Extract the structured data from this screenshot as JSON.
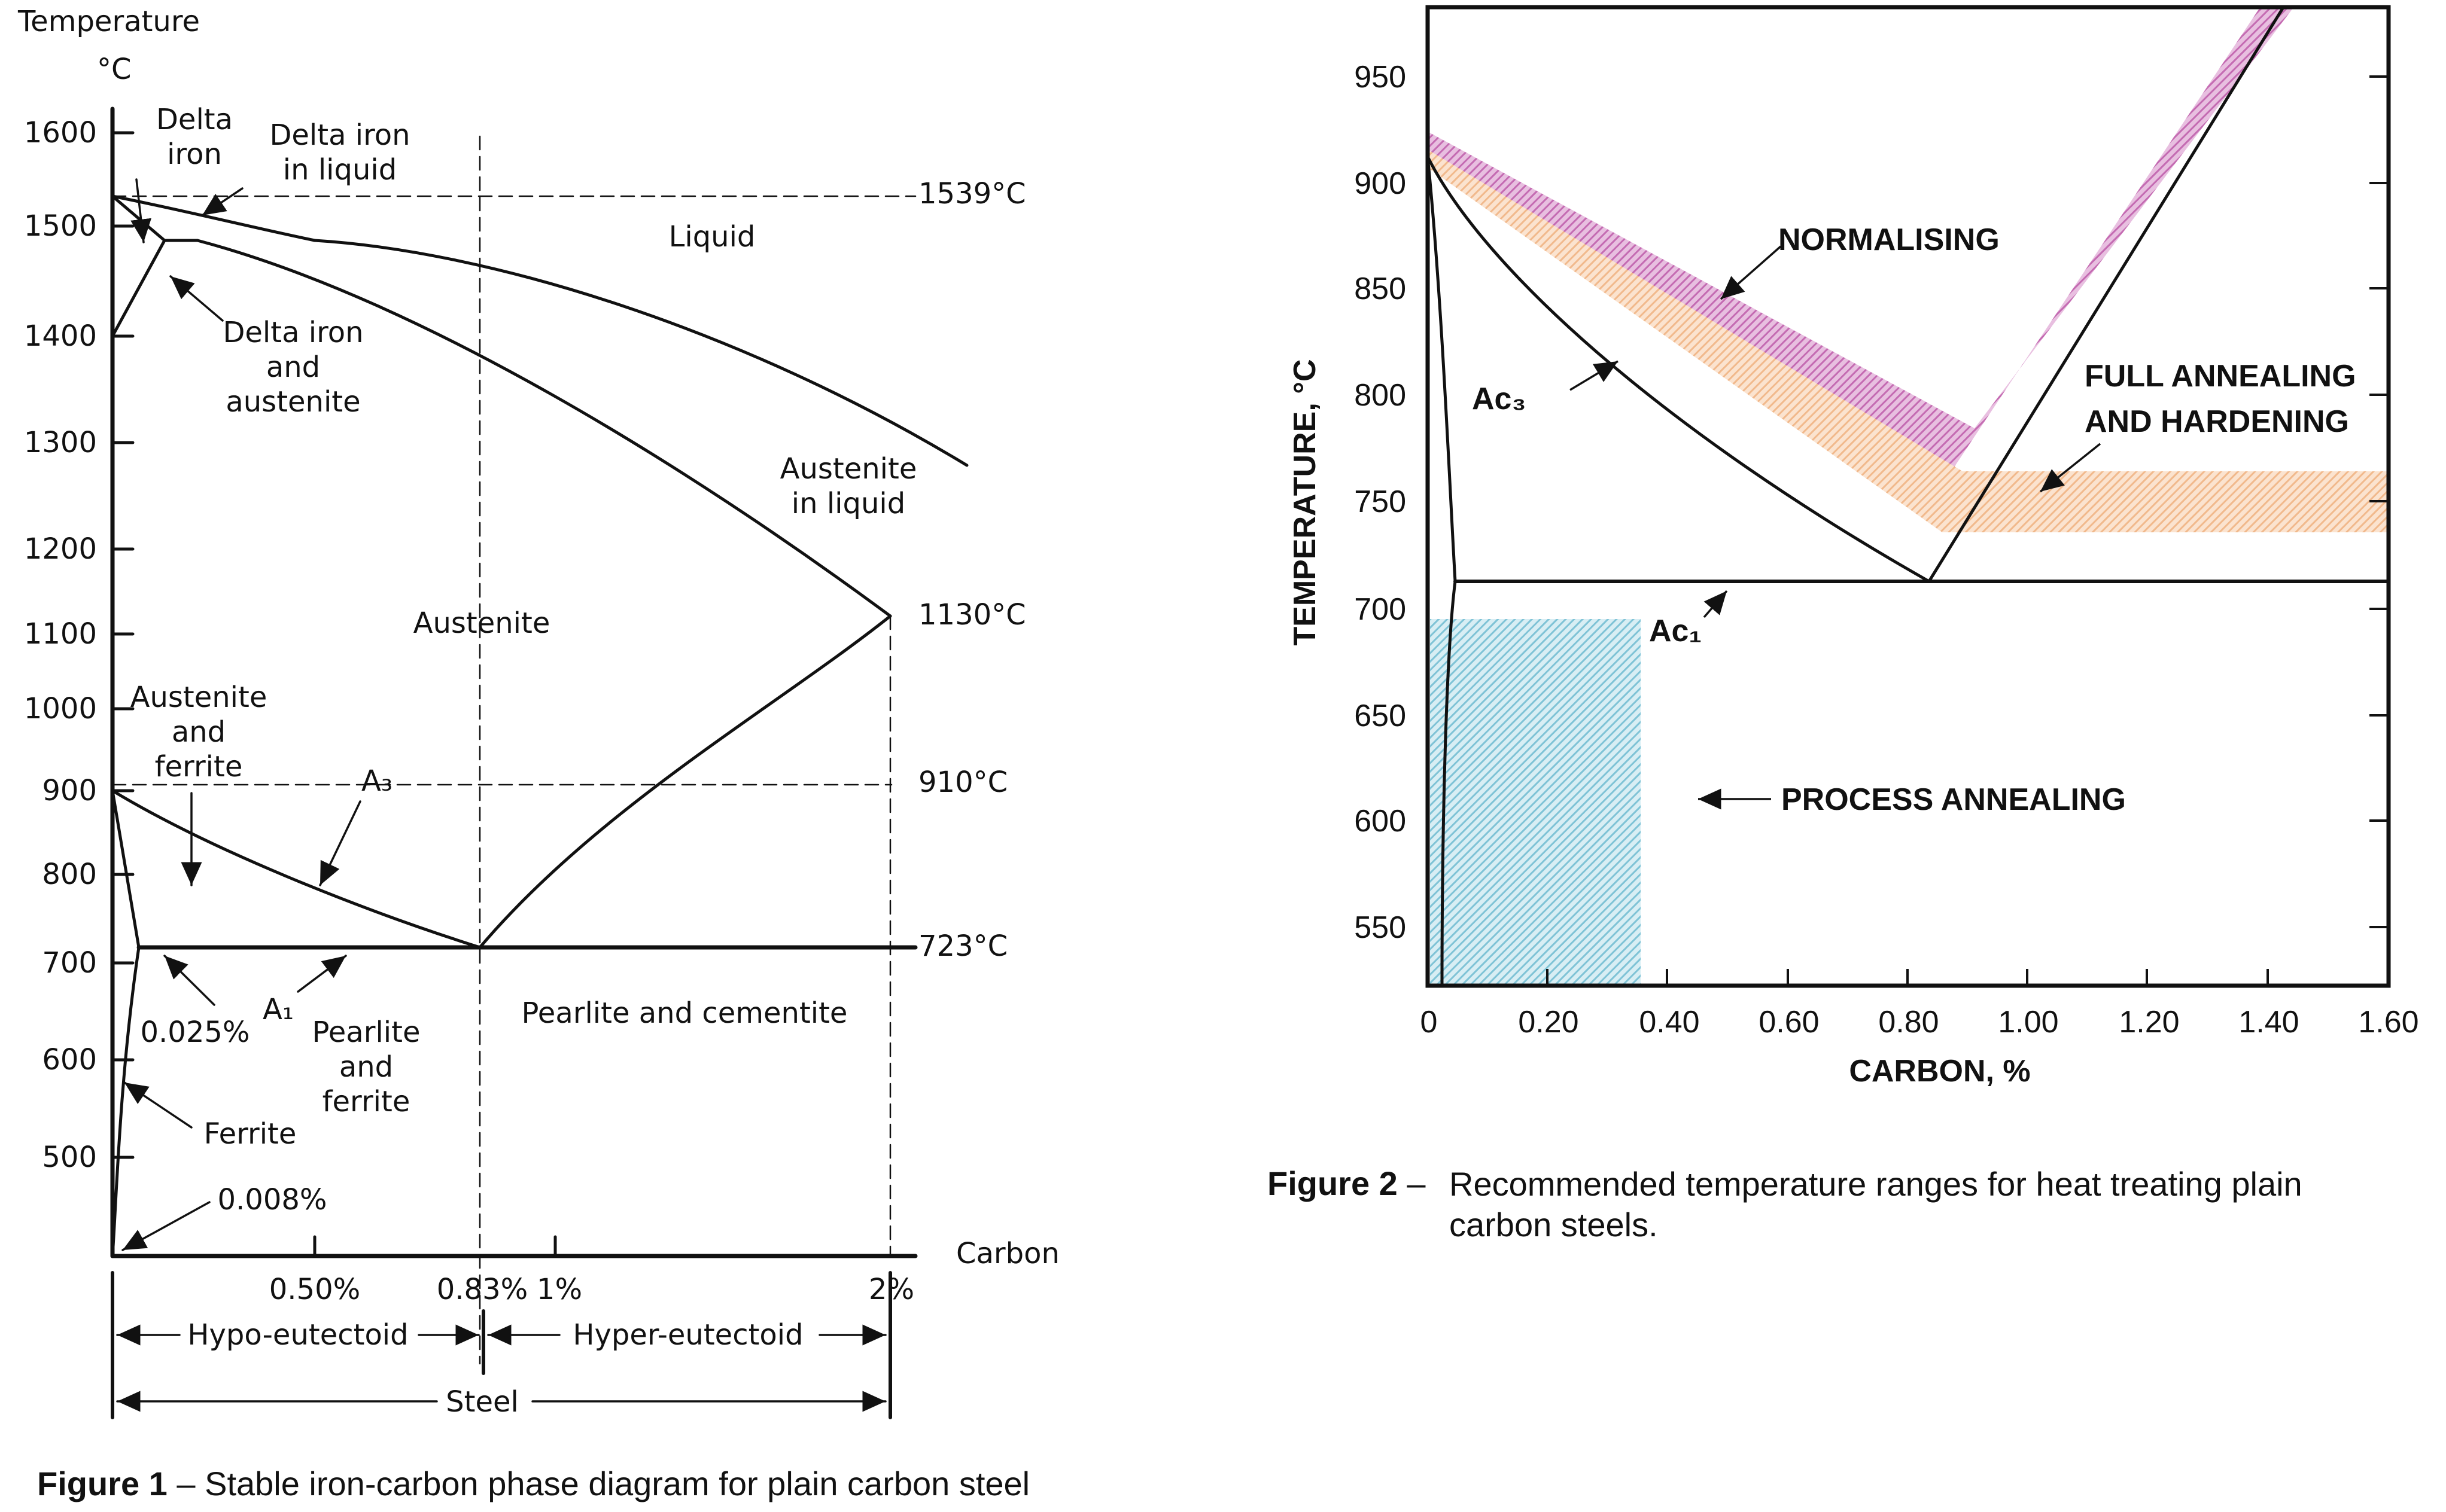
{
  "figure1": {
    "caption_label": "Figure 1",
    "caption_text": " – Stable iron-carbon phase diagram for plain carbon steel",
    "y_axis_title": "Temperature",
    "y_axis_unit": "°C",
    "x_axis_title": "Carbon",
    "y_ticks": [
      "1600",
      "1500",
      "1400",
      "1300",
      "1200",
      "1100",
      "1000",
      "900",
      "800",
      "700",
      "600",
      "500"
    ],
    "x_ticks": [
      "0.50%",
      "0.83%",
      "1%",
      "2%"
    ],
    "temp_labels": [
      "1539°C",
      "1130°C",
      "910°C",
      "723°C"
    ],
    "regions": {
      "delta_iron_1": "Delta",
      "delta_iron_2": "iron",
      "delta_in_liquid_1": "Delta iron",
      "delta_in_liquid_2": "in liquid",
      "liquid": "Liquid",
      "delta_austenite_1": "Delta iron",
      "delta_austenite_2": "and",
      "delta_austenite_3": "austenite",
      "austenite_liquid_1": "Austenite",
      "austenite_liquid_2": "in liquid",
      "austenite": "Austenite",
      "austenite_ferrite_1": "Austenite",
      "austenite_ferrite_2": "and",
      "austenite_ferrite_3": "ferrite",
      "a3": "A₃",
      "a1": "A₁",
      "pct_0025": "0.025%",
      "pearlite_ferrite_1": "Pearlite",
      "pearlite_ferrite_2": "and",
      "pearlite_ferrite_3": "ferrite",
      "pearlite_cementite": "Pearlite and cementite",
      "ferrite": "Ferrite",
      "pct_0008": "0.008%"
    },
    "bottom": {
      "hypo": "Hypo-eutectoid",
      "hyper": "Hyper-eutectoid",
      "steel": "Steel"
    }
  },
  "figure2": {
    "caption_label": "Figure 2",
    "caption_dash": " –",
    "caption_text": "Recommended temperature ranges for heat treating plain carbon steels.",
    "y_axis_title": "TEMPERATURE, °C",
    "x_axis_title": "CARBON, %",
    "y_ticks": [
      "950",
      "900",
      "850",
      "800",
      "750",
      "700",
      "650",
      "600",
      "550"
    ],
    "x_ticks": [
      "0",
      "0.20",
      "0.40",
      "0.60",
      "0.80",
      "1.00",
      "1.20",
      "1.40",
      "1.60"
    ],
    "labels": {
      "normalising": "NORMALISING",
      "full_annealing_1": "FULL ANNEALING",
      "full_annealing_2": "AND HARDENING",
      "process_annealing": "PROCESS ANNEALING",
      "ac3": "Ac₃",
      "ac1": "Ac₁"
    },
    "colors": {
      "normalising": "#c46bb2",
      "full_annealing": "#f1b98c",
      "process_annealing": "#7fc3d6"
    }
  }
}
